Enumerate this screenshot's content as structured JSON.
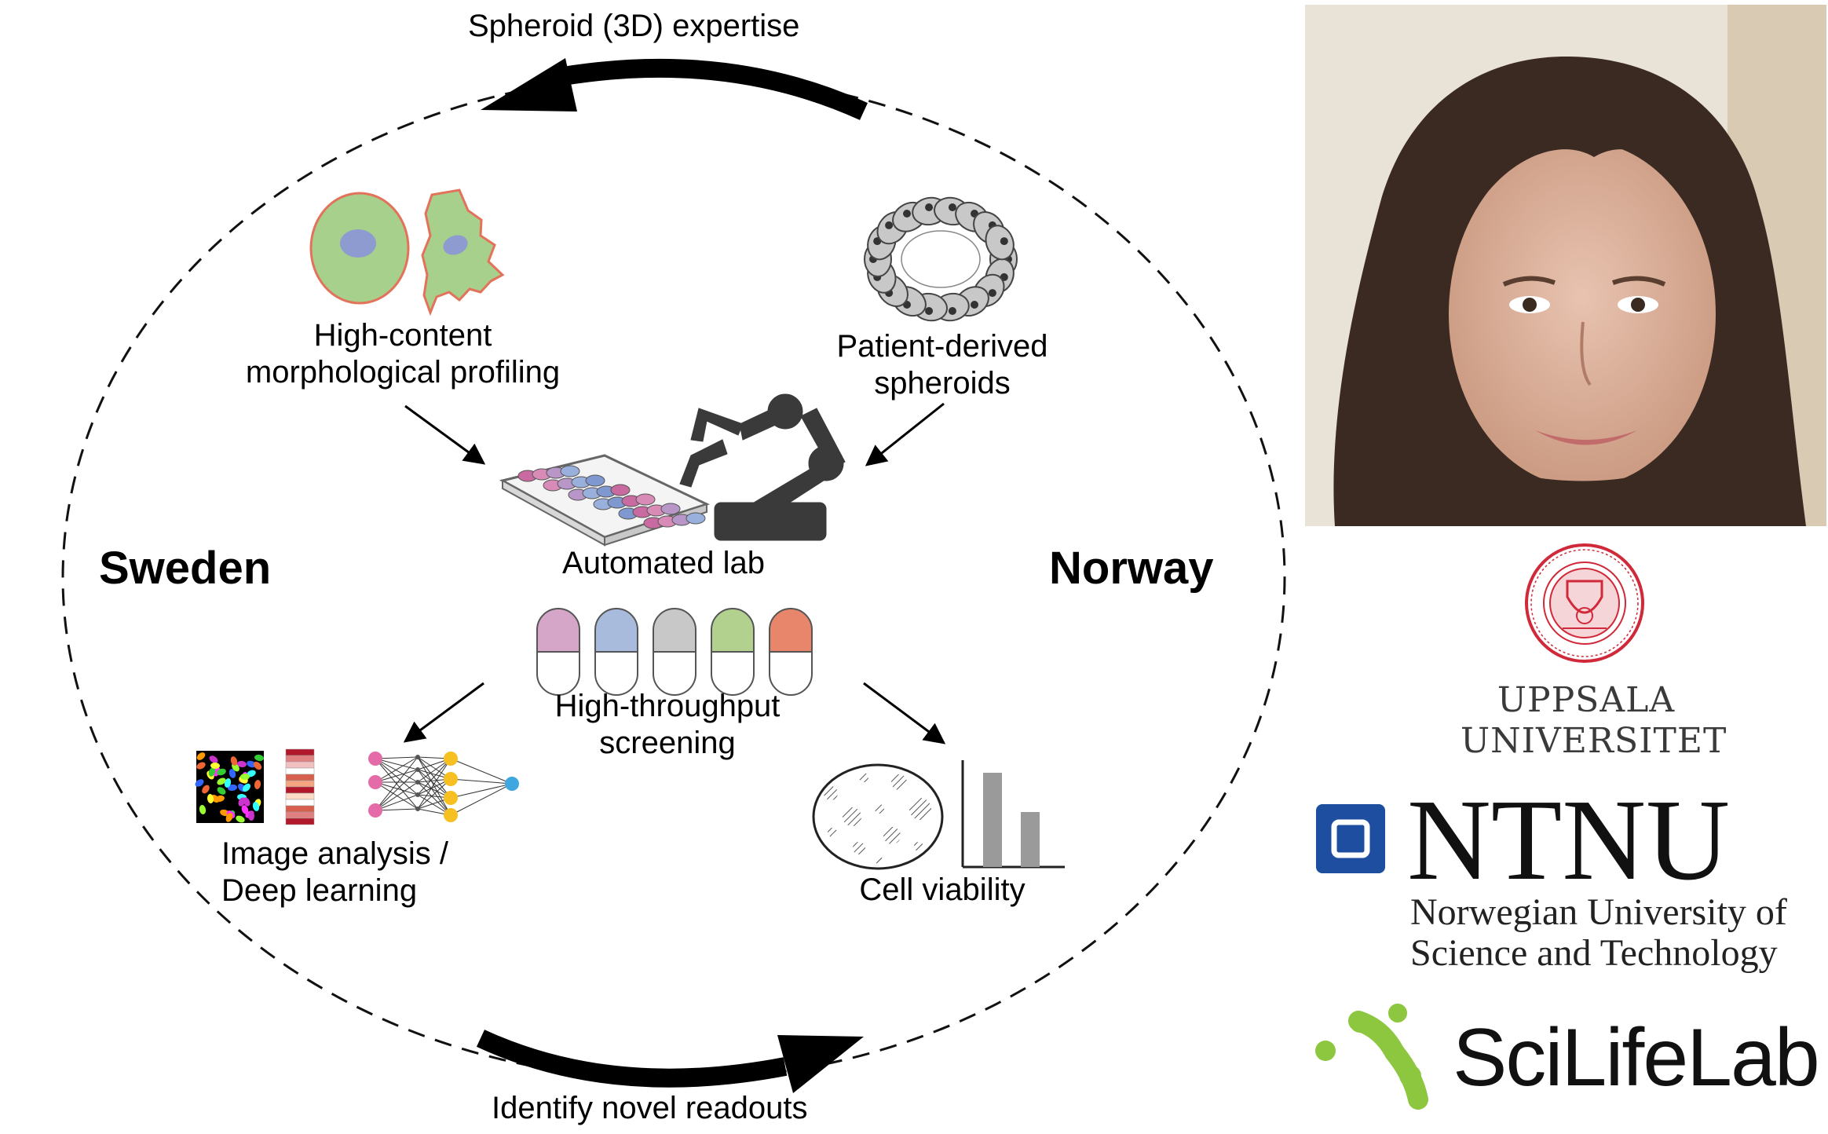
{
  "diagram": {
    "top_arrow_label": "Spheroid (3D) expertise",
    "bottom_arrow_label": "Identify novel readouts",
    "left_country": "Sweden",
    "right_country": "Norway",
    "nodes": {
      "profiling": [
        "High-content",
        "morphological profiling"
      ],
      "spheroids": [
        "Patient-derived",
        "spheroids"
      ],
      "automated_lab": "Automated lab",
      "screening": [
        "High-throughput",
        "screening"
      ],
      "image_analysis": [
        "Image analysis /",
        "Deep learning"
      ],
      "cell_viability": "Cell viability"
    },
    "capsule_colors": [
      "#d6a6c8",
      "#a9bbdd",
      "#c8c8c8",
      "#b3d18e",
      "#e8866b"
    ],
    "colors": {
      "cell_fill": "#a8d08d",
      "cell_outline": "#e2735a",
      "nucleus": "#8e9bd0"
    }
  },
  "logos": {
    "uppsala": {
      "line1": "UPPSALA",
      "line2": "UNIVERSITET",
      "seal_color": "#d0293a"
    },
    "ntnu": {
      "wordmark": "NTNU",
      "line1": "Norwegian University of",
      "line2": "Science and Technology",
      "square_color": "#1d4ea0"
    },
    "scilifelab": {
      "wordmark": "SciLifeLab",
      "dots_color": "#8dc63f"
    }
  },
  "photo": {
    "description_icon": "portrait-photo"
  }
}
